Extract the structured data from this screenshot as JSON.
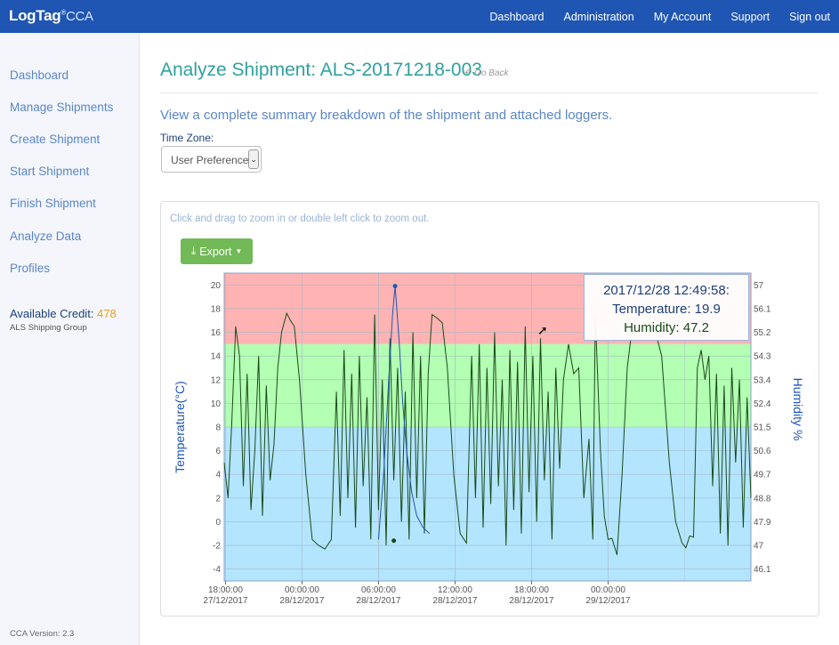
{
  "brand": {
    "name": "LogTag",
    "reg": "®",
    "suffix": "CCA"
  },
  "nav": [
    "Dashboard",
    "Administration",
    "My Account",
    "Support",
    "Sign out"
  ],
  "sidebar": {
    "items": [
      "Dashboard",
      "Manage Shipments",
      "Create Shipment",
      "Start Shipment",
      "Finish Shipment",
      "Analyze Data",
      "Profiles"
    ],
    "credit_label": "Available Credit:",
    "credit_value": "478",
    "group": "ALS Shipping Group",
    "version": "CCA Version: 2.3"
  },
  "main": {
    "title": "Analyze Shipment: ALS-20171218-003",
    "go_back": "Go Back",
    "subtitle": "View a complete summary breakdown of the shipment and attached loggers.",
    "timezone_label": "Time Zone:",
    "timezone_value": "User Preference (",
    "hint": "Click and drag to zoom in or double left click to zoom out.",
    "export_label": "Export"
  },
  "tooltip": {
    "time": "2017/12/28 12:49:58:",
    "temperature": "Temperature: 19.9",
    "humidity": "Humidity: 47.2"
  },
  "colors": {
    "navbar": "#1f55b3",
    "band_high": "#ffb3b3",
    "band_mid": "#b3ffb3",
    "band_low": "#b3e5ff",
    "temperature_line": "#1f55b3",
    "humidity_line": "#1a4a1a",
    "accent_title": "#2fa19d",
    "credit": "#e8a020"
  },
  "chart_data": {
    "type": "line",
    "ylabel": "Temperature(°C)",
    "y2label": "Humidity %",
    "ylim": [
      -5,
      21
    ],
    "yticks": [
      20,
      18,
      16,
      14,
      12,
      10,
      8,
      6,
      4,
      2,
      0,
      -2,
      -4
    ],
    "y2ticks": [
      "57",
      "56.1",
      "55.2",
      "54.3",
      "53.4",
      "52.4",
      "51.5",
      "50.6",
      "49.7",
      "48.8",
      "47.9",
      "47",
      "46.1"
    ],
    "xticks": [
      {
        "time": "18:00:00",
        "date": "27/12/2017"
      },
      {
        "time": "00:00:00",
        "date": "28/12/2017"
      },
      {
        "time": "06:00:00",
        "date": "28/12/2017"
      },
      {
        "time": "12:00:00",
        "date": "28/12/2017"
      },
      {
        "time": "18:00:00",
        "date": "28/12/2017"
      },
      {
        "time": "00:00:00",
        "date": "29/12/2017"
      }
    ],
    "xlim_hours": [
      -6.1,
      35.2
    ],
    "bands": [
      {
        "from": 15,
        "to": 21,
        "color": "#ffb3b3"
      },
      {
        "from": 8,
        "to": 15,
        "color": "#b3ffb3"
      },
      {
        "from": -5,
        "to": 8,
        "color": "#b3e5ff"
      }
    ],
    "series": [
      {
        "name": "Temperature",
        "color": "#1f55b3",
        "points": [
          [
            6.0,
            -1.5
          ],
          [
            6.4,
            4.0
          ],
          [
            6.8,
            12.0
          ],
          [
            7.1,
            17.5
          ],
          [
            7.3,
            19.9
          ],
          [
            7.6,
            15.5
          ],
          [
            7.9,
            10.0
          ],
          [
            8.2,
            6.0
          ],
          [
            8.6,
            2.5
          ],
          [
            9.0,
            0.5
          ],
          [
            9.5,
            -0.5
          ],
          [
            10.0,
            -1.0
          ]
        ]
      },
      {
        "name": "Humidity",
        "color": "#1a4a1a",
        "points": [
          [
            -6.1,
            5.0
          ],
          [
            -5.8,
            2.0
          ],
          [
            -5.5,
            8.5
          ],
          [
            -5.2,
            16.5
          ],
          [
            -4.9,
            14.0
          ],
          [
            -4.6,
            3.0
          ],
          [
            -4.3,
            12.5
          ],
          [
            -4.0,
            1.0
          ],
          [
            -3.7,
            6.0
          ],
          [
            -3.4,
            14.0
          ],
          [
            -3.1,
            0.5
          ],
          [
            -2.8,
            11.5
          ],
          [
            -2.5,
            3.5
          ],
          [
            -2.2,
            6.5
          ],
          [
            -1.9,
            13.0
          ],
          [
            -1.6,
            16.0
          ],
          [
            -1.2,
            17.6
          ],
          [
            -0.9,
            17.0
          ],
          [
            -0.6,
            16.5
          ],
          [
            -0.2,
            12.0
          ],
          [
            0.3,
            4.0
          ],
          [
            0.8,
            -1.5
          ],
          [
            1.3,
            -2.0
          ],
          [
            1.8,
            -2.3
          ],
          [
            2.3,
            -1.5
          ],
          [
            2.7,
            11.0
          ],
          [
            3.0,
            0.5
          ],
          [
            3.3,
            14.5
          ],
          [
            3.6,
            2.0
          ],
          [
            3.9,
            12.5
          ],
          [
            4.2,
            -0.5
          ],
          [
            4.5,
            14.0
          ],
          [
            4.8,
            3.0
          ],
          [
            5.1,
            10.5
          ],
          [
            5.4,
            -1.5
          ],
          [
            5.7,
            17.5
          ],
          [
            6.0,
            1.0
          ],
          [
            6.3,
            12.0
          ],
          [
            6.6,
            -2.0
          ],
          [
            6.9,
            15.5
          ],
          [
            7.2,
            3.5
          ],
          [
            7.5,
            13.0
          ],
          [
            7.8,
            0.0
          ],
          [
            8.1,
            11.0
          ],
          [
            8.4,
            -1.5
          ],
          [
            8.7,
            16.0
          ],
          [
            9.0,
            2.0
          ],
          [
            9.3,
            14.0
          ],
          [
            9.6,
            -1.0
          ],
          [
            9.9,
            12.5
          ],
          [
            10.2,
            17.5
          ],
          [
            10.6,
            17.2
          ],
          [
            11.0,
            16.8
          ],
          [
            11.4,
            13.0
          ],
          [
            11.9,
            4.0
          ],
          [
            12.4,
            -1.0
          ],
          [
            12.9,
            -1.8
          ],
          [
            13.3,
            14.0
          ],
          [
            13.6,
            2.0
          ],
          [
            13.9,
            15.0
          ],
          [
            14.2,
            -0.5
          ],
          [
            14.5,
            13.0
          ],
          [
            14.8,
            1.5
          ],
          [
            15.1,
            16.0
          ],
          [
            15.4,
            3.0
          ],
          [
            15.7,
            12.0
          ],
          [
            16.0,
            -2.0
          ],
          [
            16.3,
            14.5
          ],
          [
            16.6,
            1.0
          ],
          [
            16.9,
            13.5
          ],
          [
            17.2,
            -1.0
          ],
          [
            17.5,
            16.5
          ],
          [
            17.8,
            2.5
          ],
          [
            18.1,
            14.0
          ],
          [
            18.4,
            0.0
          ],
          [
            18.7,
            15.5
          ],
          [
            19.0,
            3.5
          ],
          [
            19.3,
            11.0
          ],
          [
            19.6,
            -1.5
          ],
          [
            19.9,
            13.0
          ],
          [
            20.2,
            4.5
          ],
          [
            20.5,
            12.0
          ],
          [
            20.9,
            15.0
          ],
          [
            21.3,
            12.5
          ],
          [
            21.7,
            13.0
          ],
          [
            22.1,
            2.0
          ],
          [
            22.5,
            7.0
          ],
          [
            22.8,
            -1.5
          ],
          [
            23.0,
            17.5
          ],
          [
            23.4,
            6.0
          ],
          [
            23.7,
            0.5
          ],
          [
            24.0,
            -1.5
          ],
          [
            24.3,
            -1.4
          ],
          [
            24.7,
            -2.8
          ],
          [
            25.1,
            4.0
          ],
          [
            25.5,
            13.0
          ],
          [
            25.9,
            16.5
          ],
          [
            26.4,
            17.8
          ],
          [
            27.0,
            17.5
          ],
          [
            27.6,
            16.5
          ],
          [
            28.2,
            14.0
          ],
          [
            28.8,
            5.0
          ],
          [
            29.3,
            0.0
          ],
          [
            29.8,
            -1.8
          ],
          [
            30.1,
            -2.2
          ],
          [
            30.4,
            -1.2
          ],
          [
            30.7,
            -1.3
          ],
          [
            31.0,
            13.0
          ],
          [
            31.3,
            14.5
          ],
          [
            31.6,
            12.0
          ],
          [
            31.9,
            14.0
          ],
          [
            32.2,
            3.0
          ],
          [
            32.5,
            12.5
          ],
          [
            32.8,
            -1.0
          ],
          [
            33.1,
            11.5
          ],
          [
            33.4,
            -2.0
          ],
          [
            33.7,
            13.0
          ],
          [
            34.0,
            5.0
          ],
          [
            34.3,
            12.0
          ],
          [
            34.6,
            -0.5
          ],
          [
            34.9,
            10.5
          ],
          [
            35.2,
            2.0
          ]
        ]
      }
    ]
  }
}
